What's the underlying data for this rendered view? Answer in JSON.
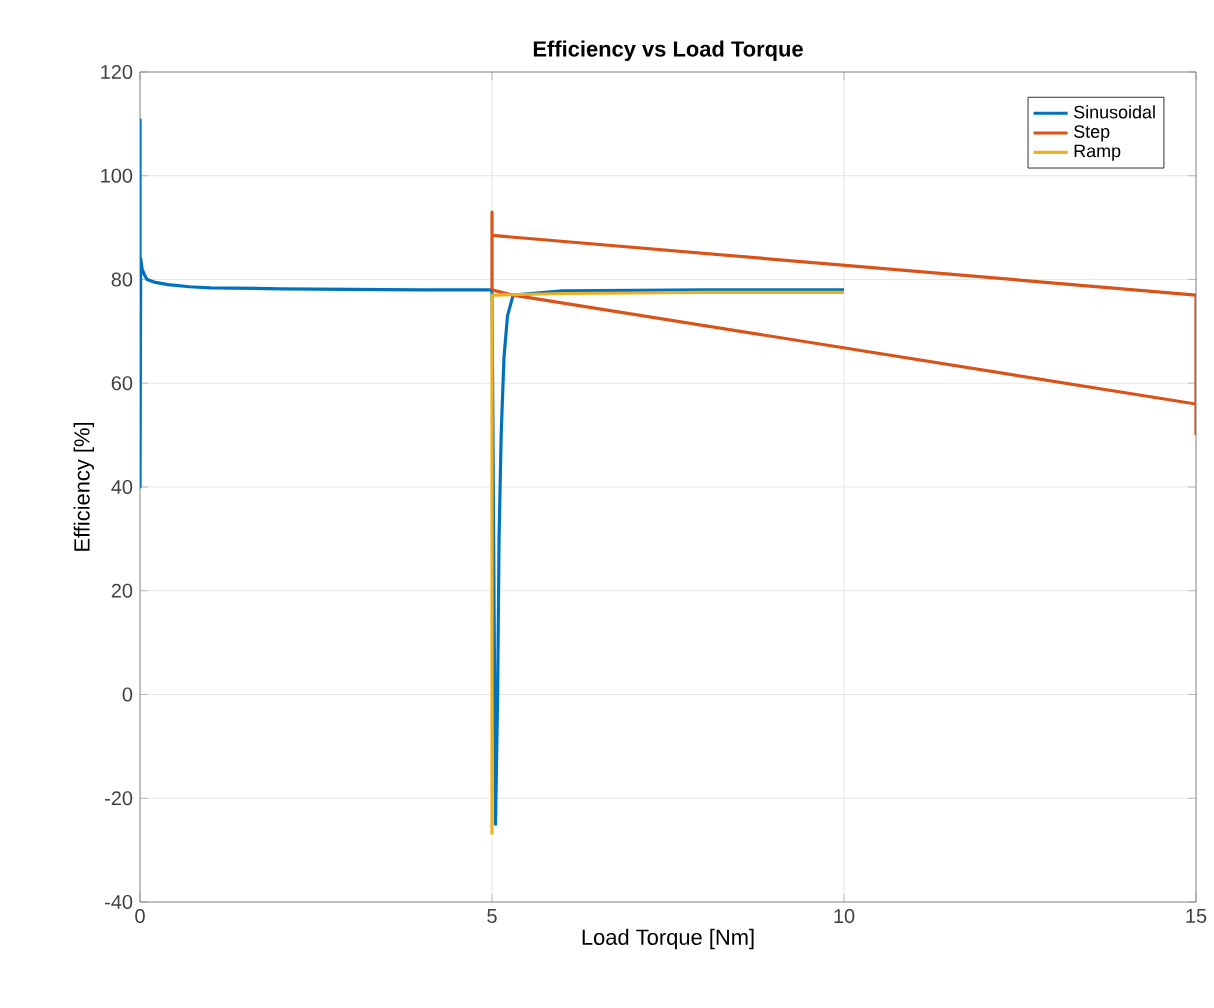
{
  "chart_data": {
    "type": "line",
    "title": "Efficiency vs Load Torque",
    "xlabel": "Load Torque [Nm]",
    "ylabel": "Efficiency [%]",
    "xlim": [
      0,
      15
    ],
    "ylim": [
      -40,
      120
    ],
    "xticks": [
      0,
      5,
      10,
      15
    ],
    "yticks": [
      -40,
      -20,
      0,
      20,
      40,
      60,
      80,
      100,
      120
    ],
    "grid": true,
    "legend": "top right",
    "series": [
      {
        "name": "Sinusoidal",
        "color": "#0072bd",
        "x": [
          0,
          0,
          0.01,
          0.03,
          0.06,
          0.1,
          0.2,
          0.4,
          0.7,
          1,
          2,
          3,
          4,
          5,
          5.05,
          5.08,
          5.1,
          5.13,
          5.17,
          5.22,
          5.3,
          6,
          7,
          8,
          9,
          10
        ],
        "values": [
          111,
          40,
          84,
          82,
          81,
          80,
          79.5,
          79,
          78.6,
          78.4,
          78.2,
          78.1,
          78,
          78,
          -25,
          0,
          30,
          50,
          65,
          73,
          77,
          77.8,
          77.9,
          78,
          78,
          78
        ]
      },
      {
        "name": "Step",
        "color": "#d95319",
        "x": [
          5,
          5,
          5,
          15,
          15
        ],
        "values": [
          78,
          93,
          88.5,
          77,
          50
        ]
      },
      {
        "color": "#d95319",
        "x": [
          5,
          5.3,
          15
        ],
        "values": [
          78,
          77,
          56
        ]
      },
      {
        "name": "Ramp",
        "color": "#edb120",
        "x": [
          5,
          5,
          5.05,
          6,
          7,
          8,
          9,
          10
        ],
        "values": [
          -27,
          77,
          77,
          77.3,
          77.4,
          77.5,
          77.5,
          77.5
        ]
      }
    ]
  }
}
